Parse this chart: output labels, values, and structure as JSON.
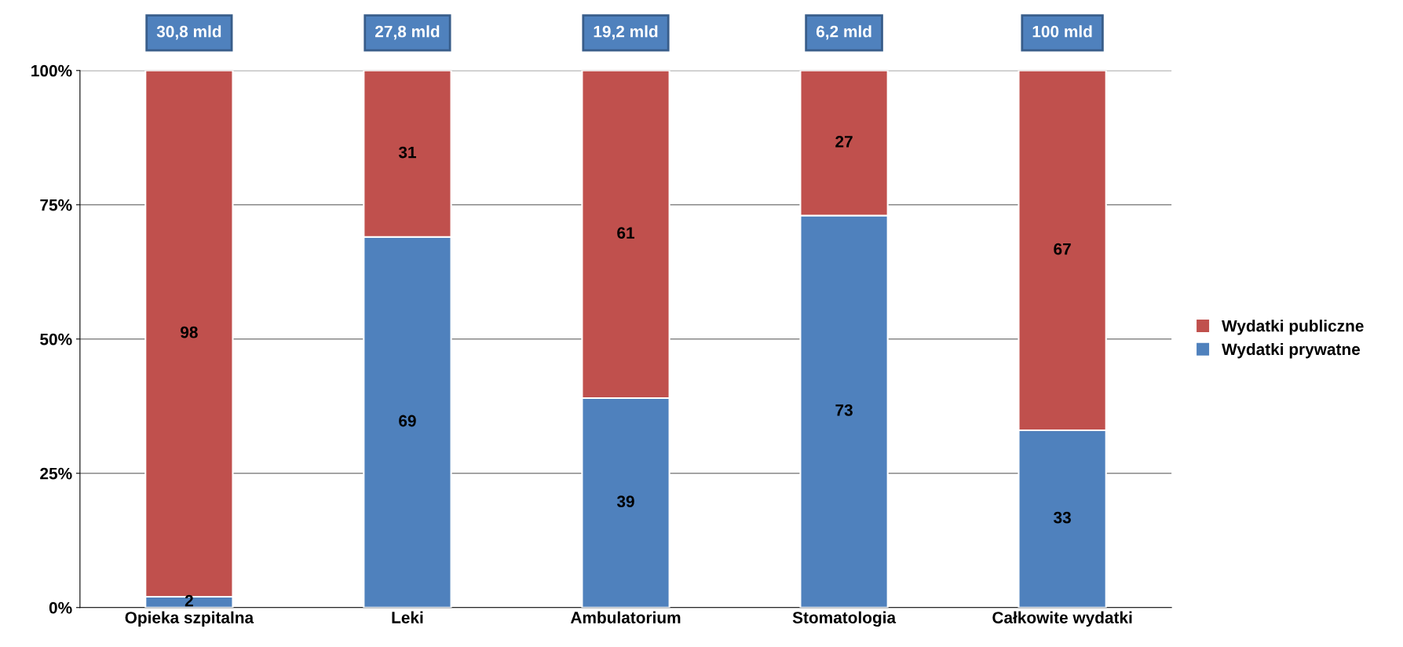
{
  "chart_data": {
    "type": "bar",
    "stacked": true,
    "categories": [
      "Opieka szpitalna",
      "Leki",
      "Ambulatorium",
      "Stomatologia",
      "Całkowite wydatki"
    ],
    "series": [
      {
        "name": "Wydatki prywatne",
        "color": "#4f81bd",
        "values": [
          2,
          69,
          39,
          73,
          33
        ]
      },
      {
        "name": "Wydatki publiczne",
        "color": "#c0504d",
        "values": [
          98,
          31,
          61,
          27,
          67
        ]
      }
    ],
    "ylim": [
      0,
      100
    ],
    "yticks": [
      {
        "value": 0,
        "label": "0%"
      },
      {
        "value": 25,
        "label": "25%"
      },
      {
        "value": 50,
        "label": "50%"
      },
      {
        "value": 75,
        "label": "75%"
      },
      {
        "value": 100,
        "label": "100%"
      }
    ],
    "grid": "y",
    "legend": "right",
    "data_labels": true,
    "annotations": [
      "30,8 mld",
      "27,8 mld",
      "19,2 mld",
      "6,2 mld",
      "100 mld"
    ]
  }
}
